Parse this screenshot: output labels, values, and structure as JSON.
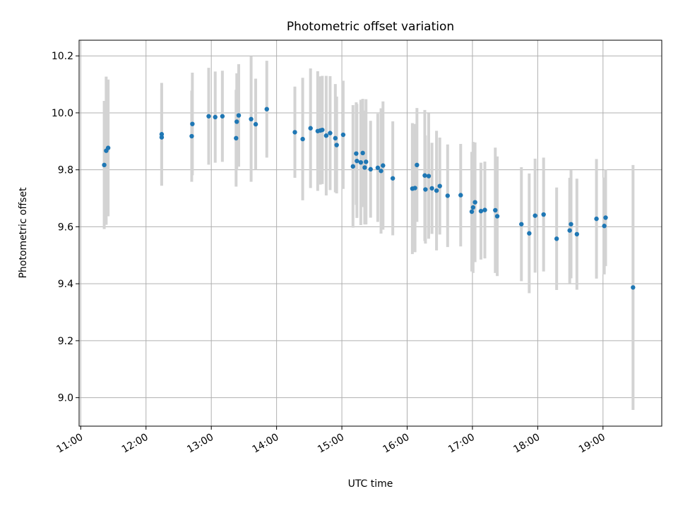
{
  "chart_data": {
    "type": "scatter",
    "title": "Photometric offset variation",
    "xlabel": "UTC time",
    "ylabel": "Photometric offset",
    "x_ticks": [
      "11:00",
      "12:00",
      "13:00",
      "14:00",
      "15:00",
      "16:00",
      "17:00",
      "18:00",
      "19:00"
    ],
    "y_ticks": [
      "9.0",
      "9.2",
      "9.4",
      "9.6",
      "9.8",
      "10.0",
      "10.2"
    ],
    "xlim_hours": [
      10.975,
      19.9
    ],
    "ylim": [
      8.9,
      10.255
    ],
    "grid": true,
    "colors": {
      "point": "#1f77b4",
      "errorbar": "#d3d3d3"
    },
    "series": [
      {
        "x_hours": [
          11.36,
          11.39,
          11.42,
          12.24,
          12.24,
          12.7,
          12.71,
          12.96,
          13.06,
          13.17,
          13.38,
          13.39,
          13.42,
          13.61,
          13.68,
          13.85,
          14.28,
          14.4,
          14.52,
          14.63,
          14.67,
          14.7,
          14.76,
          14.82,
          14.9,
          14.92,
          15.02,
          15.17,
          15.22,
          15.23,
          15.29,
          15.32,
          15.35,
          15.37,
          15.44,
          15.55,
          15.6,
          15.63,
          15.78,
          16.08,
          16.12,
          16.15,
          16.27,
          16.28,
          16.33,
          16.38,
          16.45,
          16.5,
          16.62,
          16.82,
          16.99,
          17.01,
          17.04,
          17.13,
          17.19,
          17.35,
          17.38,
          17.75,
          17.87,
          17.96,
          18.09,
          18.29,
          18.49,
          18.51,
          18.6,
          18.9,
          19.02,
          19.04,
          19.46
        ],
        "y": [
          9.817,
          9.867,
          9.877,
          9.925,
          9.914,
          9.918,
          9.961,
          9.988,
          9.985,
          9.988,
          9.911,
          9.969,
          9.991,
          9.978,
          9.96,
          10.013,
          9.932,
          9.908,
          9.946,
          9.936,
          9.938,
          9.94,
          9.92,
          9.929,
          9.911,
          9.887,
          9.923,
          9.812,
          9.857,
          9.831,
          9.826,
          9.859,
          9.808,
          9.828,
          9.802,
          9.807,
          9.796,
          9.815,
          9.77,
          9.734,
          9.736,
          9.817,
          9.78,
          9.731,
          9.778,
          9.735,
          9.727,
          9.743,
          9.709,
          9.711,
          9.653,
          9.668,
          9.686,
          9.655,
          9.659,
          9.658,
          9.637,
          9.609,
          9.577,
          9.639,
          9.643,
          9.558,
          9.587,
          9.609,
          9.574,
          9.628,
          9.603,
          9.632,
          9.387
        ],
        "y_err": [
          0.225,
          0.26,
          0.24,
          0.18,
          0.17,
          0.16,
          0.18,
          0.17,
          0.16,
          0.16,
          0.17,
          0.17,
          0.18,
          0.22,
          0.16,
          0.17,
          0.16,
          0.215,
          0.21,
          0.21,
          0.19,
          0.19,
          0.21,
          0.2,
          0.19,
          0.17,
          0.19,
          0.215,
          0.18,
          0.2,
          0.22,
          0.19,
          0.2,
          0.22,
          0.17,
          0.19,
          0.22,
          0.225,
          0.2,
          0.23,
          0.225,
          0.2,
          0.23,
          0.19,
          0.22,
          0.16,
          0.21,
          0.17,
          0.18,
          0.18,
          0.21,
          0.23,
          0.21,
          0.17,
          0.17,
          0.22,
          0.21,
          0.2,
          0.21,
          0.2,
          0.2,
          0.18,
          0.185,
          0.19,
          0.195,
          0.21,
          0.17,
          0.17,
          0.43
        ]
      }
    ]
  }
}
